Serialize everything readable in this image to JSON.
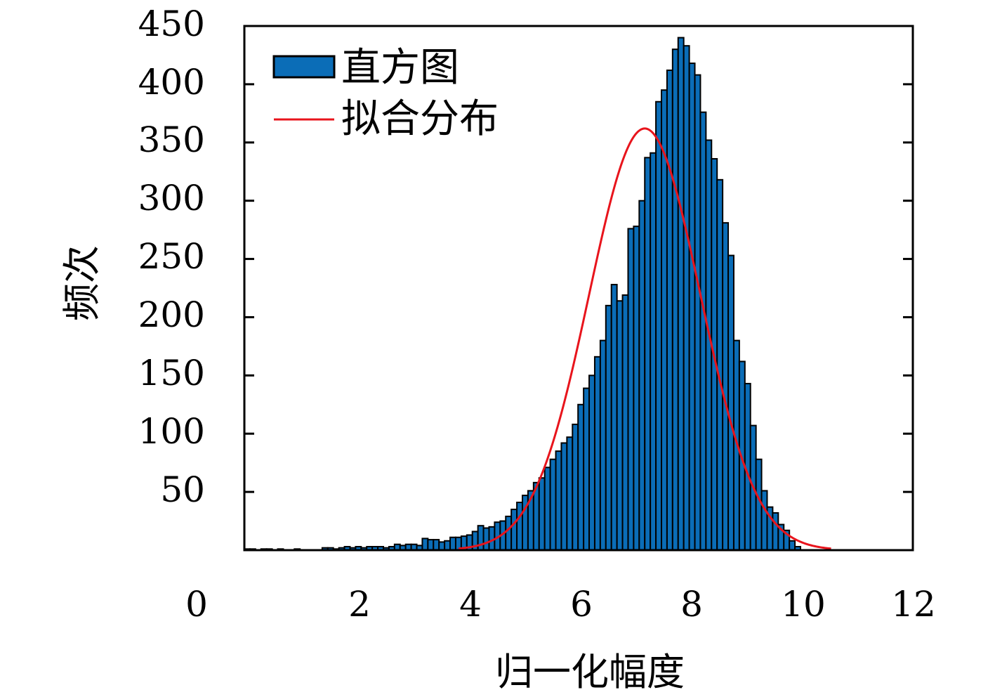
{
  "chart_data": {
    "type": "bar",
    "xlabel": "归一化幅度",
    "ylabel": "频次",
    "xlim": [
      0,
      12
    ],
    "ylim": [
      0,
      450
    ],
    "x_ticks": [
      "0",
      "2",
      "4",
      "6",
      "8",
      "10",
      "12"
    ],
    "y_ticks": [
      "50",
      "100",
      "150",
      "200",
      "250",
      "300",
      "350",
      "400",
      "450"
    ],
    "legend": {
      "position": "top-left",
      "entries": [
        "直方图",
        "拟合分布"
      ]
    },
    "grid": false,
    "colors": {
      "bars": "#0b6db7",
      "bar_edge": "#000000",
      "fit": "#e8141c",
      "axes": "#000000"
    },
    "series": [
      {
        "name": "直方图",
        "type": "bar",
        "bin_width": 0.1,
        "bin_centers": [
          0.05,
          0.15,
          0.25,
          0.35,
          0.45,
          0.55,
          0.65,
          0.75,
          0.85,
          0.95,
          1.05,
          1.15,
          1.25,
          1.35,
          1.45,
          1.55,
          1.65,
          1.75,
          1.85,
          1.95,
          2.05,
          2.15,
          2.25,
          2.35,
          2.45,
          2.55,
          2.65,
          2.75,
          2.85,
          2.95,
          3.05,
          3.15,
          3.25,
          3.35,
          3.45,
          3.55,
          3.65,
          3.75,
          3.85,
          3.95,
          4.05,
          4.15,
          4.25,
          4.35,
          4.45,
          4.55,
          4.65,
          4.75,
          4.85,
          4.95,
          5.05,
          5.15,
          5.25,
          5.35,
          5.45,
          5.55,
          5.65,
          5.75,
          5.85,
          5.95,
          6.05,
          6.15,
          6.25,
          6.35,
          6.45,
          6.55,
          6.65,
          6.75,
          6.85,
          6.95,
          7.05,
          7.15,
          7.25,
          7.35,
          7.45,
          7.55,
          7.65,
          7.75,
          7.85,
          7.95,
          8.05,
          8.15,
          8.25,
          8.35,
          8.45,
          8.55,
          8.65,
          8.75,
          8.85,
          8.95,
          9.05,
          9.15,
          9.25,
          9.35,
          9.45,
          9.55,
          9.65,
          9.75,
          9.85,
          9.95
        ],
        "values": [
          1,
          1,
          0,
          1,
          1,
          0,
          1,
          0,
          0,
          1,
          0,
          0,
          0,
          0,
          2,
          2,
          1,
          2,
          3,
          2,
          3,
          2,
          3,
          3,
          3,
          2,
          3,
          5,
          4,
          5,
          5,
          4,
          10,
          9,
          9,
          7,
          8,
          11,
          11,
          12,
          13,
          16,
          21,
          19,
          20,
          24,
          25,
          29,
          35,
          41,
          47,
          51,
          58,
          62,
          71,
          78,
          85,
          92,
          97,
          108,
          125,
          139,
          150,
          166,
          180,
          210,
          228,
          214,
          219,
          276,
          278,
          300,
          337,
          341,
          385,
          395,
          412,
          430,
          440,
          433,
          418,
          408,
          376,
          352,
          336,
          318,
          281,
          253,
          180,
          162,
          143,
          107,
          78,
          51,
          37,
          32,
          22,
          17,
          8,
          3
        ]
      },
      {
        "name": "拟合分布",
        "type": "line",
        "x_range": [
          3.85,
          10.55
        ],
        "peak_x": 7.2,
        "peak_y": 362,
        "sigma": 1.0
      }
    ]
  }
}
